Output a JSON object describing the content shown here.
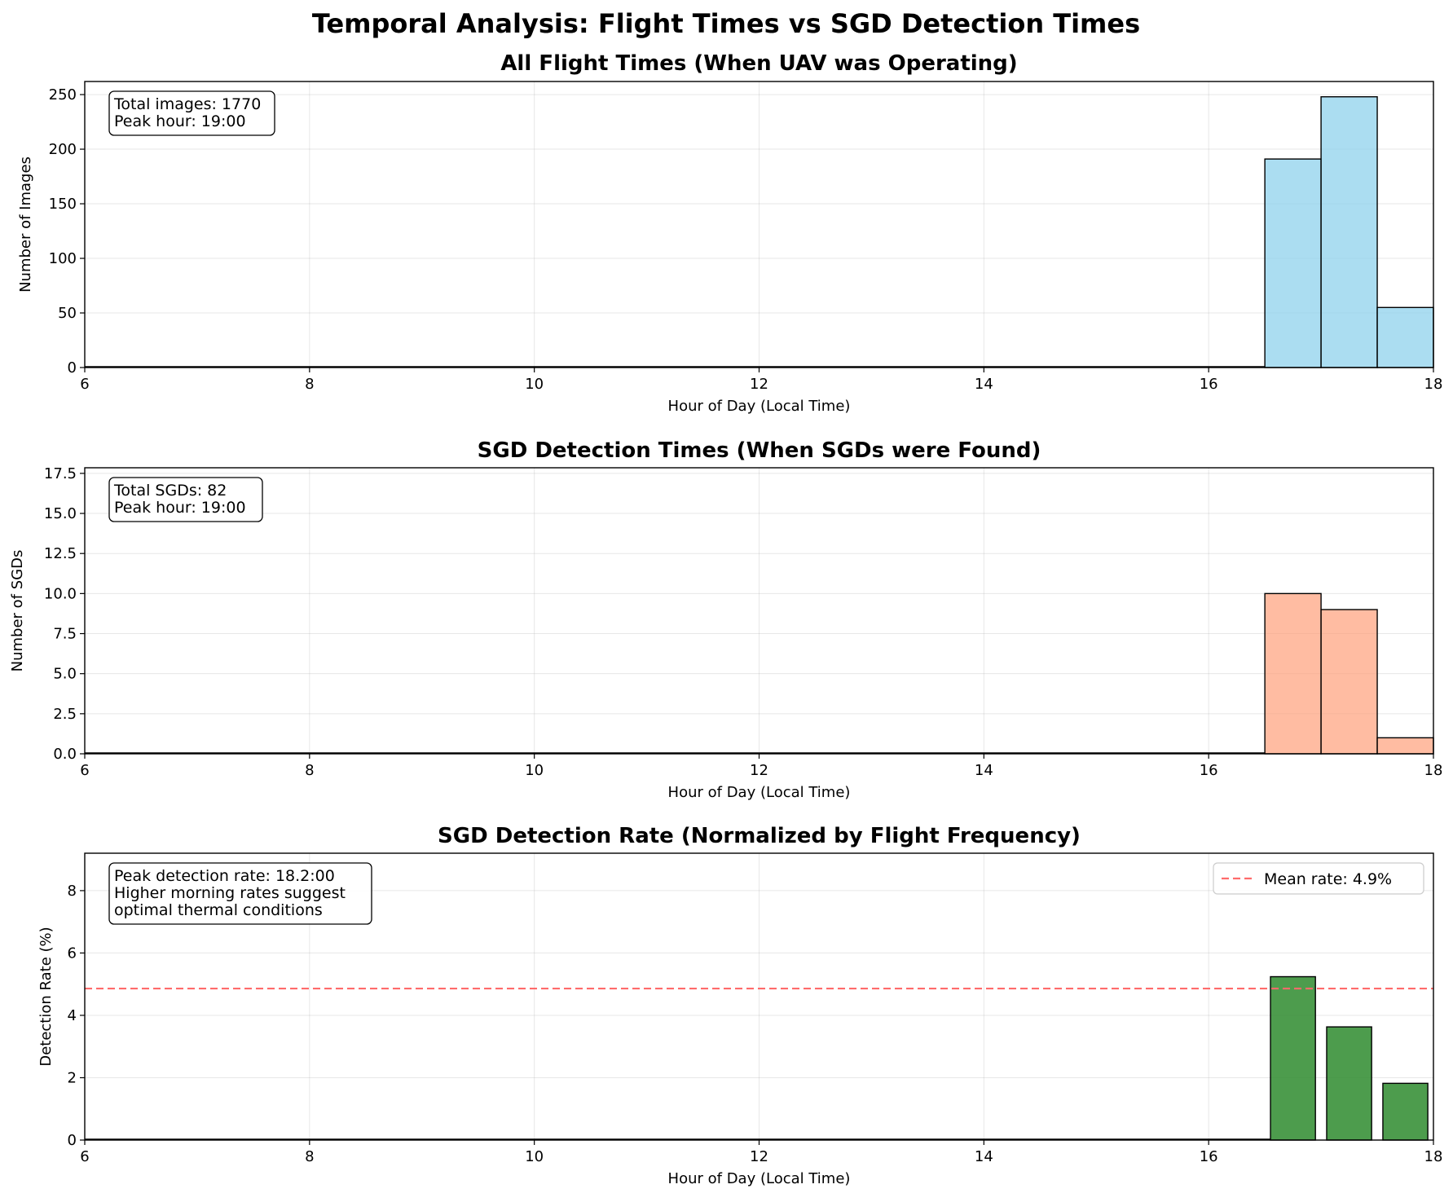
{
  "figure_title": "Temporal Analysis: Flight Times vs SGD Detection Times",
  "chart_data": [
    {
      "type": "bar",
      "title": "All Flight Times (When UAV was Operating)",
      "xlabel": "Hour of Day (Local Time)",
      "ylabel": "Number of Images",
      "xlim": [
        6,
        18
      ],
      "ylim": [
        0,
        262
      ],
      "xticks": [
        "6",
        "8",
        "10",
        "12",
        "14",
        "16",
        "18"
      ],
      "yticks": [
        "0",
        "50",
        "100",
        "150",
        "200",
        "250"
      ],
      "grid": true,
      "color": "#87CEEB",
      "bins": [
        {
          "x0": 16.5,
          "x1": 17.0,
          "value": 191
        },
        {
          "x0": 17.0,
          "x1": 17.5,
          "value": 248
        },
        {
          "x0": 17.5,
          "x1": 18.0,
          "value": 55
        }
      ],
      "annotation": [
        "Total images: 1770",
        "Peak hour: 19:00"
      ]
    },
    {
      "type": "bar",
      "title": "SGD Detection Times (When SGDs were Found)",
      "xlabel": "Hour of Day (Local Time)",
      "ylabel": "Number of SGDs",
      "xlim": [
        6,
        18
      ],
      "ylim": [
        0,
        17.85
      ],
      "xticks": [
        "6",
        "8",
        "10",
        "12",
        "14",
        "16",
        "18"
      ],
      "yticks": [
        "0.0",
        "2.5",
        "5.0",
        "7.5",
        "10.0",
        "12.5",
        "15.0",
        "17.5"
      ],
      "grid": true,
      "color": "#FFA07A",
      "bins": [
        {
          "x0": 16.5,
          "x1": 17.0,
          "value": 10
        },
        {
          "x0": 17.0,
          "x1": 17.5,
          "value": 9
        },
        {
          "x0": 17.5,
          "x1": 18.0,
          "value": 1
        }
      ],
      "annotation": [
        "Total SGDs: 82",
        "Peak hour: 19:00"
      ]
    },
    {
      "type": "bar",
      "title": "SGD Detection Rate (Normalized by Flight Frequency)",
      "xlabel": "Hour of Day (Local Time)",
      "ylabel": "Detection Rate (%)",
      "xlim": [
        6,
        18
      ],
      "ylim": [
        0,
        9.2
      ],
      "xticks": [
        "6",
        "8",
        "10",
        "12",
        "14",
        "16",
        "18"
      ],
      "yticks": [
        "0",
        "2",
        "4",
        "6",
        "8"
      ],
      "grid": true,
      "color": "#2E8B2E",
      "bins": [
        {
          "x0": 16.55,
          "x1": 16.95,
          "value": 5.24
        },
        {
          "x0": 17.05,
          "x1": 17.45,
          "value": 3.63
        },
        {
          "x0": 17.55,
          "x1": 17.95,
          "value": 1.82
        }
      ],
      "mean_line": {
        "value": 4.86,
        "color": "#FF6B6B",
        "label": "Mean rate: 4.9%"
      },
      "legend_position": "top-right",
      "annotation": [
        "Peak detection rate: 18.2:00",
        "Higher morning rates suggest",
        "optimal thermal conditions"
      ]
    }
  ]
}
